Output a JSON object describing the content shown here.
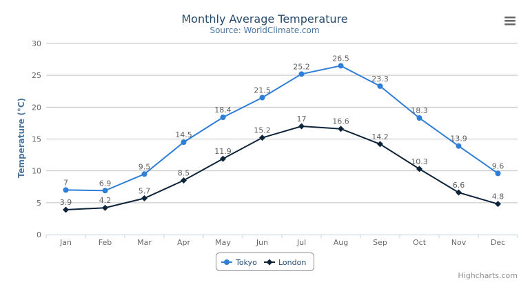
{
  "chart_data": {
    "type": "line",
    "title": "Monthly Average Temperature",
    "subtitle": "Source: WorldClimate.com",
    "xlabel": "",
    "ylabel": "Temperature (°C)",
    "categories": [
      "Jan",
      "Feb",
      "Mar",
      "Apr",
      "May",
      "Jun",
      "Jul",
      "Aug",
      "Sep",
      "Oct",
      "Nov",
      "Dec"
    ],
    "ylim": [
      0,
      30
    ],
    "yticks": [
      0,
      5,
      10,
      15,
      20,
      25,
      30
    ],
    "grid": true,
    "legend_position": "bottom-center",
    "data_labels": true,
    "series": [
      {
        "name": "Tokyo",
        "color": "#2f7ed8",
        "marker": "circle",
        "values": [
          7,
          6.9,
          9.5,
          14.5,
          18.4,
          21.5,
          25.2,
          26.5,
          23.3,
          18.3,
          13.9,
          9.6
        ]
      },
      {
        "name": "London",
        "color": "#0d233a",
        "marker": "diamond",
        "values": [
          3.9,
          4.2,
          5.7,
          8.5,
          11.9,
          15.2,
          17,
          16.6,
          14.2,
          10.3,
          6.6,
          4.8
        ]
      }
    ]
  },
  "menu_icon": "hamburger-icon",
  "credits": "Highcharts.com"
}
